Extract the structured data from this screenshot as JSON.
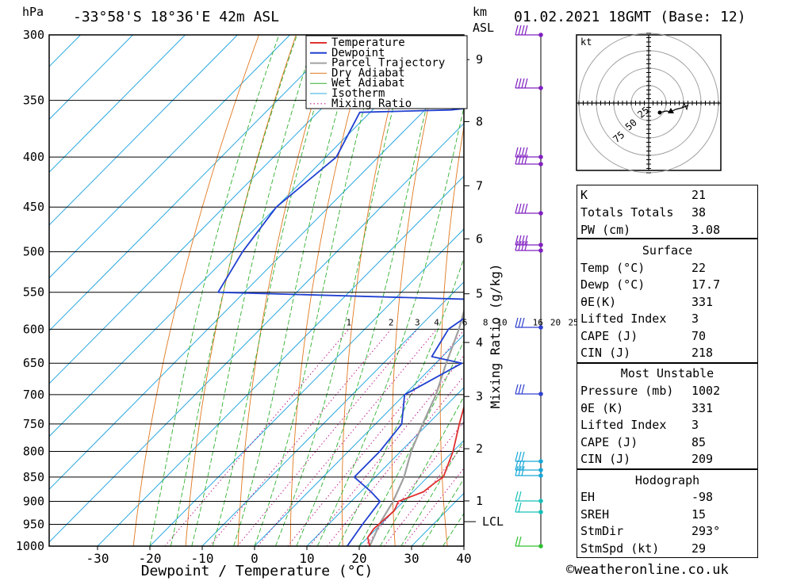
{
  "header": {
    "unit_left": "hPa",
    "location": "-33°58'S  18°36'E  42m  ASL",
    "unit_km": "km",
    "unit_asl": "ASL",
    "datetime": "01.02.2021  18GMT  (Base: 12)"
  },
  "chart_data": {
    "type": "line",
    "title": "-33°58'S 18°36'E 42m ASL",
    "xlabel": "Dewpoint / Temperature (°C)",
    "ylabel": "hPa",
    "xlim": [
      -40,
      40
    ],
    "ylim": [
      1000,
      300
    ],
    "pressure_ticks": [
      300,
      350,
      400,
      450,
      500,
      550,
      600,
      650,
      700,
      750,
      800,
      850,
      900,
      950,
      1000
    ],
    "temp_ticks": [
      -30,
      -20,
      -10,
      0,
      10,
      20,
      30,
      40
    ],
    "km_ticks": [
      {
        "km": 1,
        "p": 899
      },
      {
        "km": 2,
        "p": 795
      },
      {
        "km": 3,
        "p": 703
      },
      {
        "km": 4,
        "p": 619
      },
      {
        "km": 5,
        "p": 552
      },
      {
        "km": 6,
        "p": 485
      },
      {
        "km": 7,
        "p": 428
      },
      {
        "km": 8,
        "p": 368
      },
      {
        "km": 9,
        "p": 318
      }
    ],
    "lcl": {
      "label": "LCL",
      "p": 944
    },
    "mixing_ratio_label": "Mixing Ratio (g/kg)",
    "mixing_ratio_values": [
      1,
      2,
      3,
      4,
      6,
      8,
      10,
      16,
      20,
      25
    ],
    "legend": [
      "Temperature",
      "Dewpoint",
      "Parcel Trajectory",
      "Dry Adiabat",
      "Wet Adiabat",
      "Isotherm",
      "Mixing Ratio"
    ],
    "series": [
      {
        "name": "Temperature",
        "color": "#e03030",
        "points": [
          [
            1000,
            22
          ],
          [
            980,
            20
          ],
          [
            960,
            19.5
          ],
          [
            920,
            20
          ],
          [
            900,
            19
          ],
          [
            880,
            22
          ],
          [
            860,
            22.5
          ],
          [
            850,
            23
          ],
          [
            800,
            20
          ],
          [
            750,
            16
          ],
          [
            700,
            12
          ],
          [
            650,
            7.5
          ],
          [
            600,
            4
          ],
          [
            570,
            -1.5
          ],
          [
            555,
            2
          ],
          [
            545,
            5.5
          ],
          [
            500,
            3
          ],
          [
            450,
            -5
          ],
          [
            400,
            -14
          ],
          [
            380,
            -16
          ],
          [
            350,
            -20
          ],
          [
            320,
            -27
          ],
          [
            300,
            -31
          ]
        ]
      },
      {
        "name": "Dewpoint",
        "color": "#2040d0",
        "points": [
          [
            1000,
            17.7
          ],
          [
            950,
            16.5
          ],
          [
            900,
            15.5
          ],
          [
            880,
            12
          ],
          [
            850,
            6
          ],
          [
            800,
            6
          ],
          [
            750,
            5
          ],
          [
            700,
            0
          ],
          [
            650,
            5
          ],
          [
            640,
            -2
          ],
          [
            600,
            -4
          ],
          [
            560,
            -1.5
          ],
          [
            550,
            -55
          ],
          [
            500,
            -58
          ],
          [
            450,
            -60
          ],
          [
            400,
            -58
          ],
          [
            360,
            -62
          ],
          [
            358,
            -45
          ],
          [
            350,
            -30
          ],
          [
            330,
            -20
          ],
          [
            320,
            -24
          ],
          [
            300,
            -45
          ]
        ]
      },
      {
        "name": "Parcel Trajectory",
        "color": "#a0a0a0",
        "points": [
          [
            1000,
            22
          ],
          [
            944,
            19.5
          ],
          [
            900,
            18
          ],
          [
            850,
            15.5
          ],
          [
            800,
            12
          ],
          [
            750,
            9
          ],
          [
            700,
            6
          ],
          [
            650,
            2
          ],
          [
            600,
            -2
          ],
          [
            550,
            -7
          ],
          [
            500,
            -13
          ],
          [
            450,
            -19
          ],
          [
            400,
            -26
          ],
          [
            350,
            -34
          ],
          [
            300,
            -45
          ]
        ]
      }
    ]
  },
  "stability": {
    "rows": [
      {
        "label": "K",
        "value": "21"
      },
      {
        "label": "Totals Totals",
        "value": "38"
      },
      {
        "label": "PW (cm)",
        "value": "3.08"
      }
    ]
  },
  "surface": {
    "title": "Surface",
    "rows": [
      {
        "label": "Temp (°C)",
        "value": "22"
      },
      {
        "label": "Dewp (°C)",
        "value": "17.7"
      },
      {
        "label": "θE(K)",
        "value": "331"
      },
      {
        "label": "Lifted Index",
        "value": "3"
      },
      {
        "label": "CAPE (J)",
        "value": "70"
      },
      {
        "label": "CIN (J)",
        "value": "218"
      }
    ]
  },
  "most_unstable": {
    "title": "Most Unstable",
    "rows": [
      {
        "label": "Pressure (mb)",
        "value": "1002"
      },
      {
        "label": "θE (K)",
        "value": "331"
      },
      {
        "label": "Lifted Index",
        "value": "3"
      },
      {
        "label": "CAPE (J)",
        "value": "85"
      },
      {
        "label": "CIN (J)",
        "value": "209"
      }
    ]
  },
  "hodograph": {
    "title": "Hodograph",
    "unit": "kt",
    "ring_labels": [
      "25",
      "50",
      "75"
    ],
    "rows": [
      {
        "label": "EH",
        "value": "-98"
      },
      {
        "label": "SREH",
        "value": "15"
      },
      {
        "label": "StmDir",
        "value": "293°"
      },
      {
        "label": "StmSpd (kt)",
        "value": "29"
      }
    ]
  },
  "copyright": "©weatheronline.co.uk"
}
